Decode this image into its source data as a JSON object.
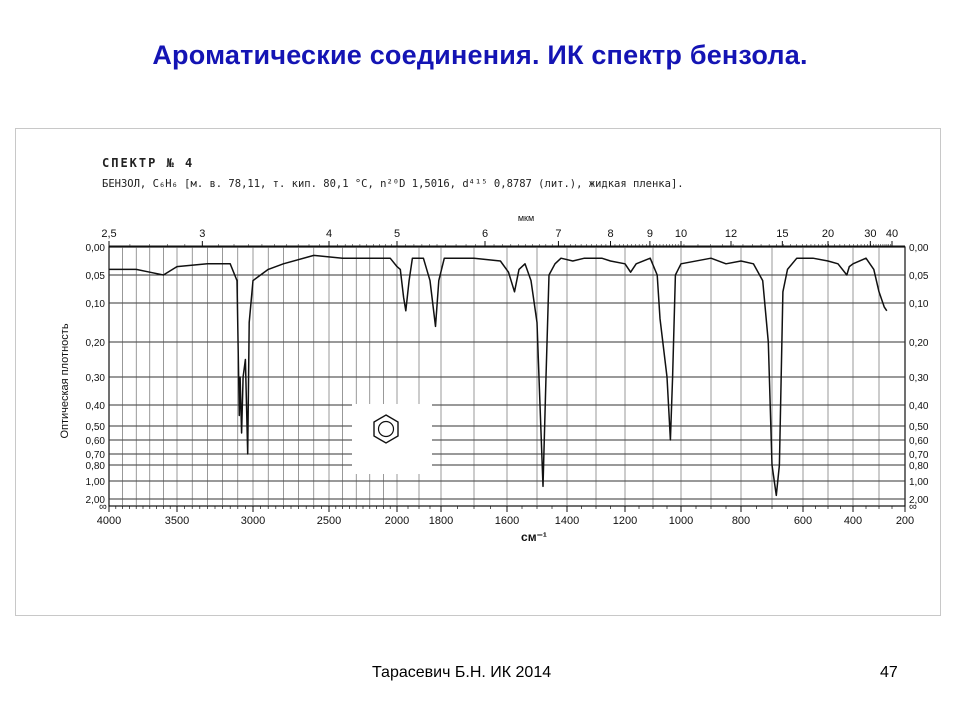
{
  "slide": {
    "title": "Ароматические соединения. ИК спектр бензола.",
    "author": "Тарасевич Б.Н.  ИК 2014",
    "page_number": "47"
  },
  "chart_data": {
    "type": "line",
    "spectrum_header": "СПЕКТР № 4",
    "compound_line": "БЕНЗОЛ, C₆H₆ [м. в. 78,11, т. кип. 80,1 °C, n²⁰D 1,5016, d⁴¹⁵ 0,8787 (лит.), жидкая пленка].",
    "ylabel": "Оптическая плотность",
    "xlabel_bottom": "см⁻¹",
    "xlabel_top": "мкм",
    "x_axis_bottom": {
      "ticks": [
        4000,
        3500,
        3000,
        2500,
        2000,
        1800,
        1600,
        1400,
        1200,
        1000,
        800,
        600,
        400,
        200
      ],
      "labels": [
        "4000",
        "3500",
        "3000",
        "2500",
        "2000",
        "1800",
        "1600",
        "1400",
        "1200",
        "1000",
        "800",
        "600",
        "400",
        "200"
      ]
    },
    "x_axis_top": {
      "ticks": [
        2.5,
        3,
        4,
        5,
        6,
        7,
        8,
        9,
        10,
        12,
        15,
        20,
        30,
        40
      ],
      "labels": [
        "2,5",
        "3",
        "4",
        "5",
        "6",
        "7",
        "8",
        "9",
        "10",
        "12",
        "15",
        "20",
        "30",
        "40"
      ]
    },
    "y_axis": {
      "scale": "absorbance (nonlinear)",
      "ticks": [
        0,
        0.05,
        0.1,
        0.2,
        0.3,
        0.4,
        0.5,
        0.6,
        0.7,
        0.8,
        1.0,
        2.0
      ],
      "labels": [
        "0,00",
        "0,05",
        "0,10",
        "0,20",
        "0,30",
        "0,40",
        "0,50",
        "0,60",
        "0,70",
        "0,80",
        "1,00",
        "2,00"
      ],
      "bottom_label": "∞"
    },
    "series": [
      {
        "color": "#111111",
        "points": [
          [
            4000,
            0.04
          ],
          [
            3800,
            0.04
          ],
          [
            3700,
            0.045
          ],
          [
            3600,
            0.05
          ],
          [
            3500,
            0.035
          ],
          [
            3300,
            0.03
          ],
          [
            3150,
            0.03
          ],
          [
            3105,
            0.06
          ],
          [
            3090,
            0.45
          ],
          [
            3085,
            0.3
          ],
          [
            3075,
            0.55
          ],
          [
            3065,
            0.3
          ],
          [
            3050,
            0.25
          ],
          [
            3035,
            0.7
          ],
          [
            3025,
            0.15
          ],
          [
            3000,
            0.06
          ],
          [
            2900,
            0.04
          ],
          [
            2800,
            0.03
          ],
          [
            2600,
            0.015
          ],
          [
            2400,
            0.02
          ],
          [
            2200,
            0.02
          ],
          [
            2050,
            0.02
          ],
          [
            2000,
            0.035
          ],
          [
            1985,
            0.04
          ],
          [
            1970,
            0.09
          ],
          [
            1960,
            0.12
          ],
          [
            1945,
            0.06
          ],
          [
            1930,
            0.02
          ],
          [
            1880,
            0.02
          ],
          [
            1850,
            0.06
          ],
          [
            1825,
            0.16
          ],
          [
            1810,
            0.06
          ],
          [
            1790,
            0.02
          ],
          [
            1700,
            0.02
          ],
          [
            1620,
            0.025
          ],
          [
            1595,
            0.045
          ],
          [
            1575,
            0.08
          ],
          [
            1560,
            0.04
          ],
          [
            1540,
            0.03
          ],
          [
            1520,
            0.06
          ],
          [
            1500,
            0.15
          ],
          [
            1490,
            0.4
          ],
          [
            1480,
            1.3
          ],
          [
            1470,
            0.3
          ],
          [
            1460,
            0.05
          ],
          [
            1440,
            0.03
          ],
          [
            1420,
            0.02
          ],
          [
            1380,
            0.025
          ],
          [
            1340,
            0.02
          ],
          [
            1280,
            0.02
          ],
          [
            1250,
            0.025
          ],
          [
            1200,
            0.03
          ],
          [
            1180,
            0.045
          ],
          [
            1160,
            0.03
          ],
          [
            1110,
            0.02
          ],
          [
            1085,
            0.05
          ],
          [
            1075,
            0.14
          ],
          [
            1050,
            0.3
          ],
          [
            1038,
            0.6
          ],
          [
            1030,
            0.3
          ],
          [
            1020,
            0.05
          ],
          [
            1000,
            0.03
          ],
          [
            900,
            0.02
          ],
          [
            850,
            0.03
          ],
          [
            800,
            0.025
          ],
          [
            760,
            0.03
          ],
          [
            730,
            0.06
          ],
          [
            712,
            0.2
          ],
          [
            700,
            0.8
          ],
          [
            686,
            1.8
          ],
          [
            676,
            0.8
          ],
          [
            665,
            0.08
          ],
          [
            650,
            0.04
          ],
          [
            620,
            0.02
          ],
          [
            560,
            0.02
          ],
          [
            500,
            0.025
          ],
          [
            460,
            0.03
          ],
          [
            425,
            0.05
          ],
          [
            415,
            0.035
          ],
          [
            400,
            0.03
          ],
          [
            350,
            0.02
          ],
          [
            320,
            0.04
          ],
          [
            300,
            0.08
          ],
          [
            280,
            0.11
          ],
          [
            270,
            0.12
          ]
        ]
      }
    ],
    "xlim": [
      4000,
      200
    ],
    "ylim": [
      0,
      2
    ],
    "grid": true,
    "legend": "none"
  }
}
